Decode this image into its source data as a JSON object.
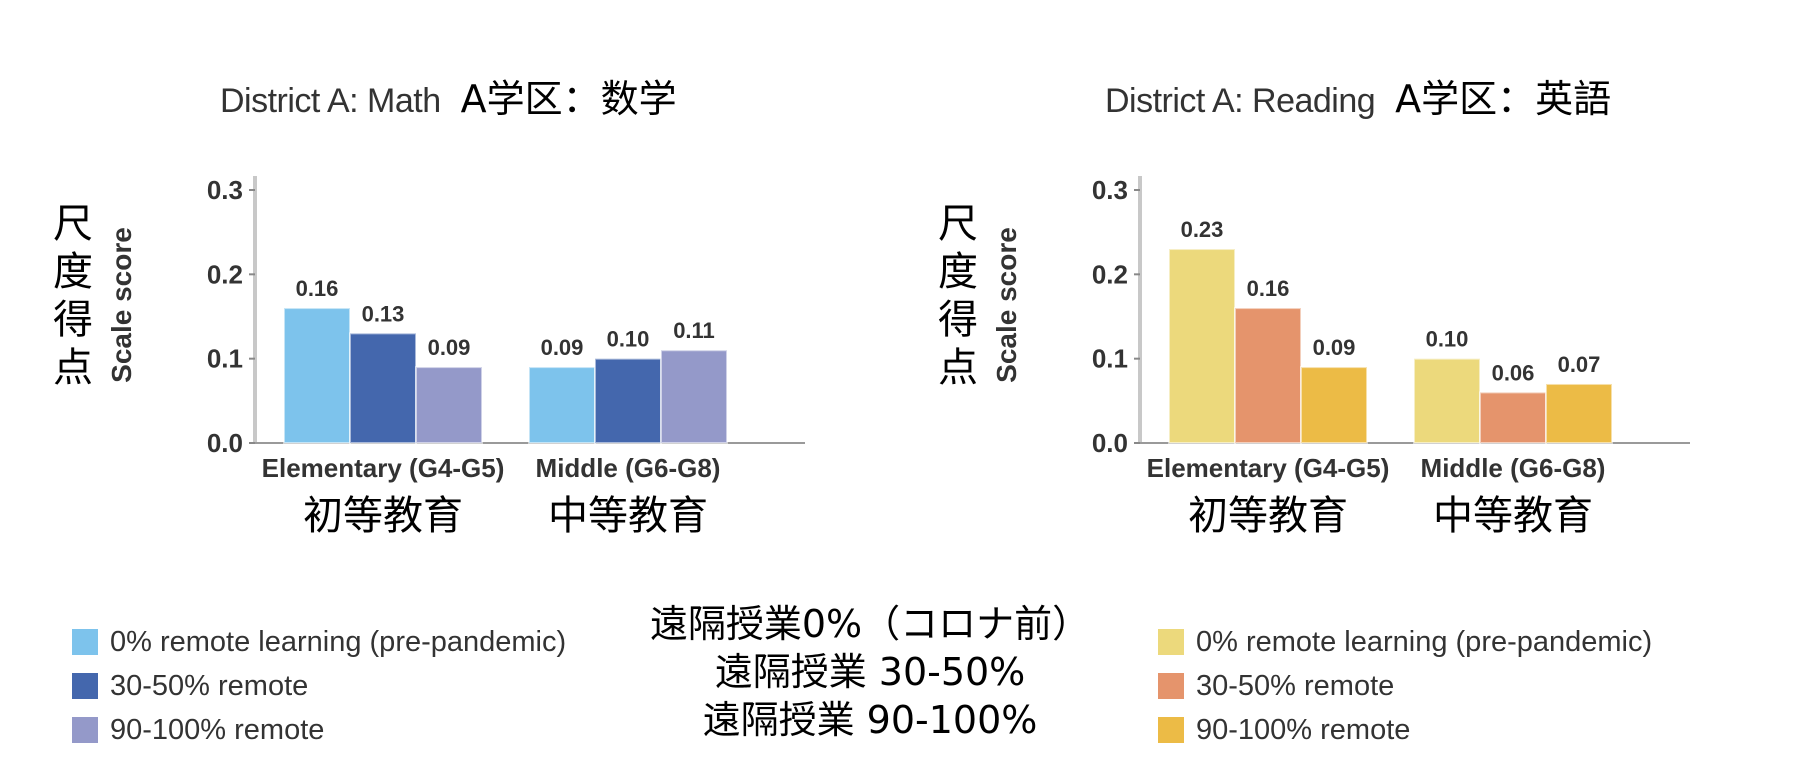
{
  "colors": {
    "math": [
      "#7dc3ec",
      "#4467ad",
      "#9499c9"
    ],
    "reading": [
      "#ecd97c",
      "#e5946c",
      "#ecbb46"
    ]
  },
  "legend_left": [
    "0% remote learning (pre-pandemic)",
    "30-50% remote",
    "90-100% remote"
  ],
  "legend_right": [
    "0% remote learning (pre-pandemic)",
    "30-50% remote",
    "90-100% remote"
  ],
  "legend_center": [
    "遠隔授業0%（コロナ前）",
    "遠隔授業 30-50%",
    "遠隔授業 90-100%"
  ],
  "chart_data": [
    {
      "type": "bar",
      "title": "District A: Math",
      "title_jp": "A学区：数学",
      "ylabel": "Scale score",
      "ylabel_jp": "尺度得点",
      "ylim": [
        0,
        0.3
      ],
      "yticks": [
        "0.0",
        "0.1",
        "0.2",
        "0.3"
      ],
      "categories": [
        "Elementary (G4-G5)",
        "Middle (G6-G8)"
      ],
      "categories_jp": [
        "初等教育",
        "中等教育"
      ],
      "series": [
        {
          "name": "0% remote learning (pre-pandemic)",
          "values": [
            0.16,
            0.09
          ],
          "labels": [
            "0.16",
            "0.09"
          ]
        },
        {
          "name": "30-50% remote",
          "values": [
            0.13,
            0.1
          ],
          "labels": [
            "0.13",
            "0.10"
          ]
        },
        {
          "name": "90-100% remote",
          "values": [
            0.09,
            0.11
          ],
          "labels": [
            "0.09",
            "0.11"
          ]
        }
      ],
      "grid": false
    },
    {
      "type": "bar",
      "title": "District A: Reading",
      "title_jp": "A学区：英語",
      "ylabel": "Scale score",
      "ylabel_jp": "尺度得点",
      "ylim": [
        0,
        0.3
      ],
      "yticks": [
        "0.0",
        "0.1",
        "0.2",
        "0.3"
      ],
      "categories": [
        "Elementary (G4-G5)",
        "Middle (G6-G8)"
      ],
      "categories_jp": [
        "初等教育",
        "中等教育"
      ],
      "series": [
        {
          "name": "0% remote learning (pre-pandemic)",
          "values": [
            0.23,
            0.1
          ],
          "labels": [
            "0.23",
            "0.10"
          ]
        },
        {
          "name": "30-50% remote",
          "values": [
            0.16,
            0.06
          ],
          "labels": [
            "0.16",
            "0.06"
          ]
        },
        {
          "name": "90-100% remote",
          "values": [
            0.09,
            0.07
          ],
          "labels": [
            "0.09",
            "0.07"
          ]
        }
      ],
      "grid": false
    }
  ]
}
